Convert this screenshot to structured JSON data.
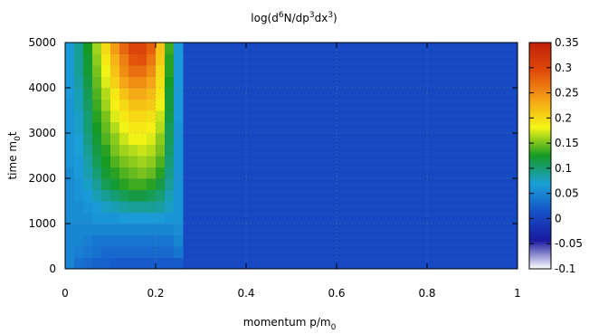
{
  "chart_data": {
    "type": "heatmap",
    "title": "log(d⁶N/dp³dx³)",
    "title_parts": [
      "log(d",
      "6",
      "N/dp",
      "3",
      "dx",
      "3",
      ")"
    ],
    "xlabel": "momentum p/m₀",
    "xlabel_parts": [
      "momentum p/m",
      "0"
    ],
    "ylabel": "time m₀t",
    "ylabel_parts": [
      "time m",
      "0",
      "t"
    ],
    "xlim": [
      0,
      1
    ],
    "ylim": [
      0,
      5000
    ],
    "zlim": [
      -0.1,
      0.35
    ],
    "x_ticks": [
      "0",
      "0.2",
      "0.4",
      "0.6",
      "0.8",
      "1"
    ],
    "y_ticks": [
      "0",
      "1000",
      "2000",
      "3000",
      "4000",
      "5000"
    ],
    "colorbar_ticks": [
      "-0.1",
      "-0.05",
      "0",
      "0.05",
      "0.1",
      "0.15",
      "0.2",
      "0.25",
      "0.3",
      "0.35"
    ],
    "colormap": [
      "#ffffff",
      "#1a1aa0",
      "#1550c8",
      "#1aa0d8",
      "#159a24",
      "#f5f515",
      "#f5a015",
      "#e04a0a",
      "#c0200a"
    ],
    "grid": true,
    "bin_edges_x": [
      0,
      0.02,
      0.04,
      0.06,
      0.08,
      0.1,
      0.12,
      0.14,
      0.16,
      0.18,
      0.2,
      0.22,
      0.24,
      0.26,
      1.0
    ],
    "bin_edges_y": [
      0,
      250,
      500,
      750,
      1000,
      1250,
      1500,
      1750,
      2000,
      2250,
      2500,
      2750,
      3000,
      3250,
      3500,
      3750,
      4000,
      4250,
      4500,
      4750,
      5000
    ],
    "background_value": 0.005,
    "z": [
      [
        0.05,
        0.035,
        0.03,
        0.025,
        0.025,
        0.02,
        0.02,
        0.02,
        0.02,
        0.02,
        0.02,
        0.02,
        0.02,
        0.005
      ],
      [
        0.05,
        0.045,
        0.04,
        0.035,
        0.03,
        0.03,
        0.03,
        0.03,
        0.03,
        0.03,
        0.03,
        0.03,
        0.04,
        0.005
      ],
      [
        0.05,
        0.05,
        0.045,
        0.04,
        0.04,
        0.04,
        0.04,
        0.04,
        0.04,
        0.04,
        0.04,
        0.04,
        0.05,
        0.005
      ],
      [
        0.05,
        0.05,
        0.05,
        0.05,
        0.05,
        0.05,
        0.05,
        0.05,
        0.05,
        0.05,
        0.05,
        0.05,
        0.055,
        0.005
      ],
      [
        0.055,
        0.055,
        0.055,
        0.06,
        0.06,
        0.06,
        0.065,
        0.065,
        0.065,
        0.065,
        0.065,
        0.06,
        0.06,
        0.005
      ],
      [
        0.055,
        0.055,
        0.06,
        0.065,
        0.075,
        0.08,
        0.085,
        0.09,
        0.09,
        0.09,
        0.085,
        0.075,
        0.06,
        0.005
      ],
      [
        0.055,
        0.06,
        0.065,
        0.08,
        0.09,
        0.1,
        0.11,
        0.115,
        0.115,
        0.11,
        0.1,
        0.08,
        0.06,
        0.005
      ],
      [
        0.055,
        0.06,
        0.075,
        0.09,
        0.11,
        0.12,
        0.13,
        0.135,
        0.135,
        0.13,
        0.115,
        0.09,
        0.06,
        0.005
      ],
      [
        0.055,
        0.065,
        0.08,
        0.1,
        0.12,
        0.13,
        0.14,
        0.145,
        0.15,
        0.145,
        0.13,
        0.095,
        0.06,
        0.005
      ],
      [
        0.06,
        0.065,
        0.085,
        0.11,
        0.125,
        0.14,
        0.15,
        0.155,
        0.16,
        0.155,
        0.14,
        0.1,
        0.06,
        0.005
      ],
      [
        0.06,
        0.07,
        0.09,
        0.115,
        0.13,
        0.15,
        0.16,
        0.165,
        0.17,
        0.165,
        0.15,
        0.105,
        0.06,
        0.005
      ],
      [
        0.06,
        0.07,
        0.095,
        0.12,
        0.14,
        0.155,
        0.17,
        0.18,
        0.18,
        0.175,
        0.155,
        0.11,
        0.06,
        0.005
      ],
      [
        0.06,
        0.075,
        0.1,
        0.125,
        0.145,
        0.165,
        0.18,
        0.19,
        0.19,
        0.185,
        0.165,
        0.11,
        0.06,
        0.005
      ],
      [
        0.06,
        0.075,
        0.1,
        0.13,
        0.15,
        0.175,
        0.19,
        0.2,
        0.2,
        0.195,
        0.17,
        0.115,
        0.065,
        0.005
      ],
      [
        0.06,
        0.08,
        0.105,
        0.135,
        0.16,
        0.185,
        0.2,
        0.215,
        0.215,
        0.21,
        0.18,
        0.12,
        0.065,
        0.005
      ],
      [
        0.065,
        0.08,
        0.11,
        0.14,
        0.165,
        0.19,
        0.215,
        0.23,
        0.23,
        0.22,
        0.19,
        0.12,
        0.065,
        0.005
      ],
      [
        0.065,
        0.085,
        0.115,
        0.145,
        0.175,
        0.205,
        0.235,
        0.25,
        0.25,
        0.235,
        0.195,
        0.125,
        0.065,
        0.005
      ],
      [
        0.065,
        0.09,
        0.12,
        0.15,
        0.18,
        0.215,
        0.25,
        0.27,
        0.27,
        0.25,
        0.2,
        0.13,
        0.065,
        0.005
      ],
      [
        0.065,
        0.09,
        0.12,
        0.155,
        0.19,
        0.225,
        0.26,
        0.285,
        0.29,
        0.265,
        0.21,
        0.13,
        0.065,
        0.005
      ],
      [
        0.065,
        0.09,
        0.125,
        0.16,
        0.2,
        0.24,
        0.275,
        0.3,
        0.3,
        0.28,
        0.215,
        0.135,
        0.065,
        0.005
      ]
    ]
  }
}
